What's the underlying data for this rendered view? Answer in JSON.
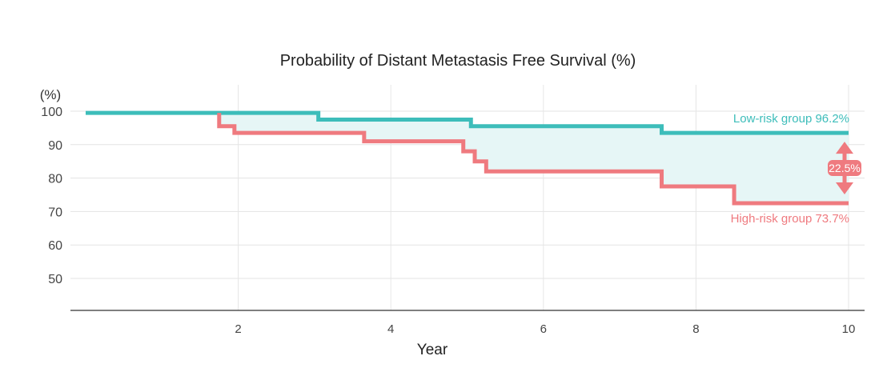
{
  "chart_data": {
    "type": "line",
    "title": "Probability of Distant Metastasis Free Survival (%)",
    "xlabel": "Year",
    "ylabel": "(%)",
    "xlim": [
      0,
      10
    ],
    "ylim": [
      40,
      100
    ],
    "x_ticks": [
      2,
      4,
      6,
      8,
      10
    ],
    "y_ticks": [
      100,
      90,
      80,
      70,
      60,
      50
    ],
    "grid": true,
    "step": true,
    "series": [
      {
        "name": "Low-risk group",
        "label": "Low-risk group 96.2%",
        "color": "#3dbdba",
        "points": [
          [
            0,
            99.5
          ],
          [
            3.05,
            99.5
          ],
          [
            3.05,
            97.5
          ],
          [
            5.05,
            97.5
          ],
          [
            5.05,
            95.5
          ],
          [
            7.55,
            95.5
          ],
          [
            7.55,
            93.5
          ],
          [
            10,
            93.5
          ]
        ]
      },
      {
        "name": "High-risk group",
        "label": "High-risk group 73.7%",
        "color": "#ef7a7f",
        "points": [
          [
            1.75,
            99.5
          ],
          [
            1.75,
            95.5
          ],
          [
            1.95,
            95.5
          ],
          [
            1.95,
            93.5
          ],
          [
            3.65,
            93.5
          ],
          [
            3.65,
            91
          ],
          [
            4.95,
            91
          ],
          [
            4.95,
            88
          ],
          [
            5.1,
            88
          ],
          [
            5.1,
            85
          ],
          [
            5.25,
            85
          ],
          [
            5.25,
            82
          ],
          [
            7.55,
            82
          ],
          [
            7.55,
            77.5
          ],
          [
            8.5,
            77.5
          ],
          [
            8.5,
            72.5
          ],
          [
            10,
            72.5
          ]
        ]
      }
    ],
    "difference": {
      "label": "22.5%",
      "color": "#ef7a7f",
      "fill": "#e6f6f6"
    }
  }
}
